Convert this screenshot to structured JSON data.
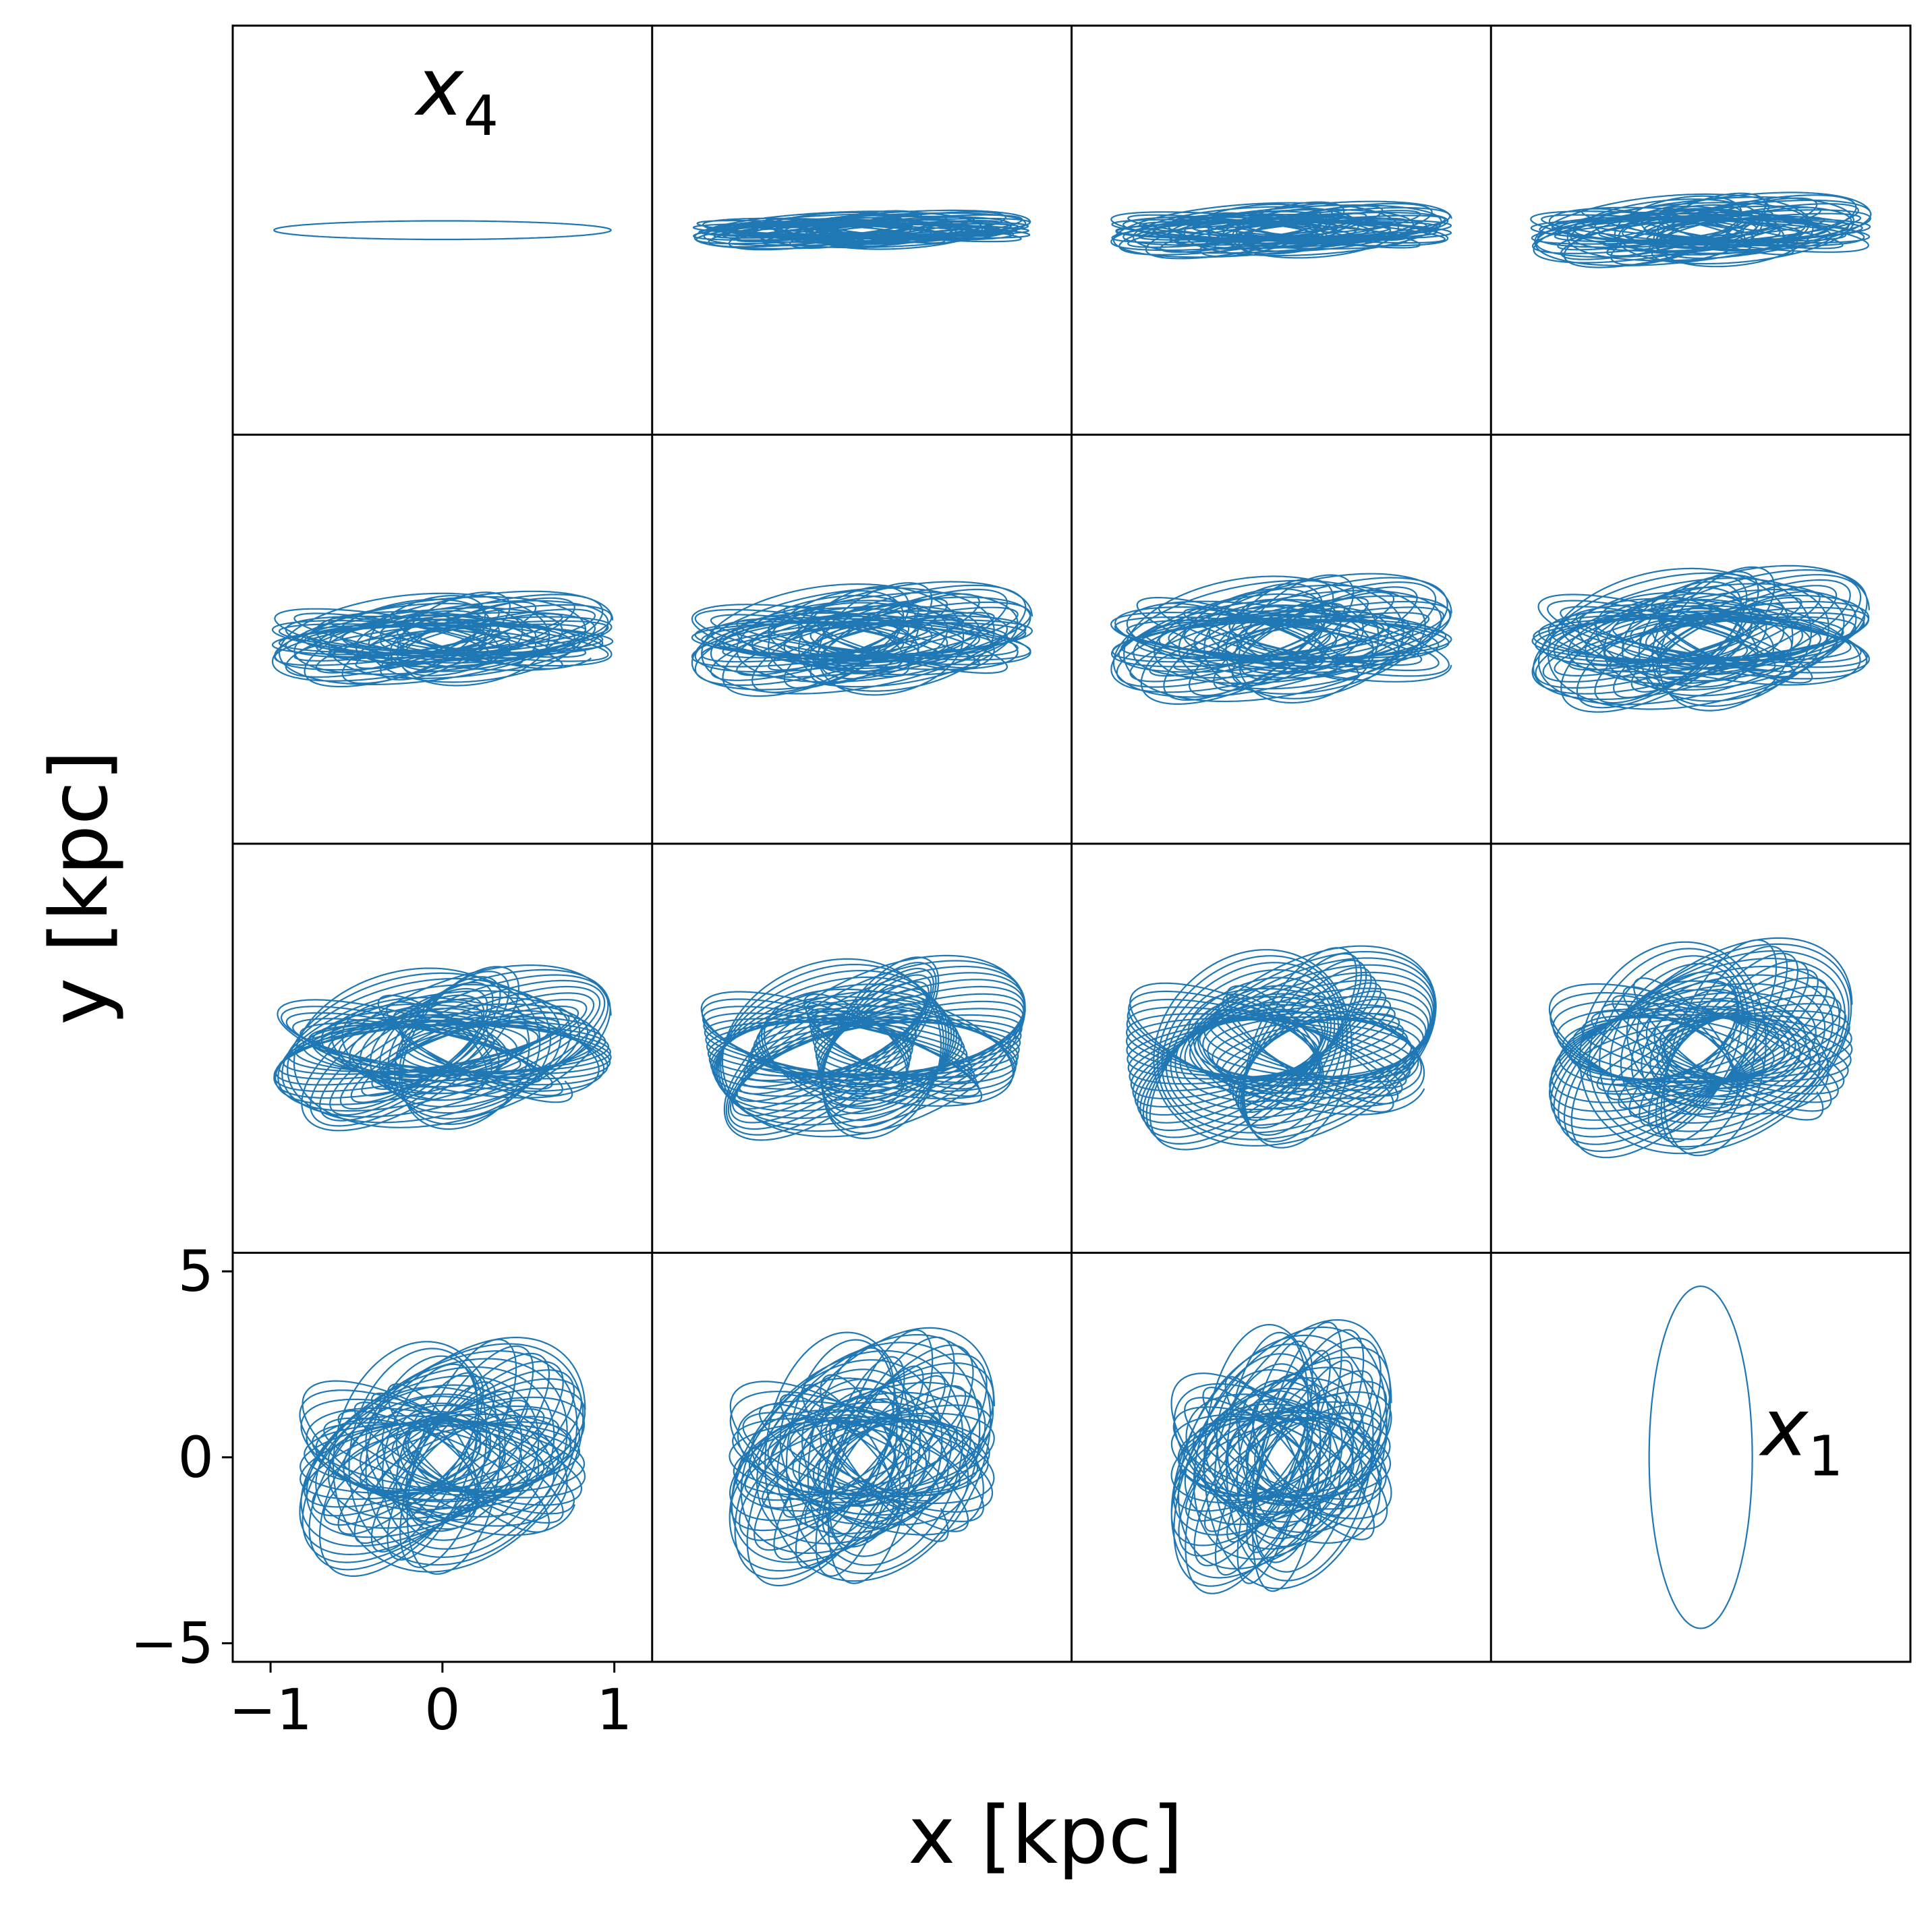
{
  "chart_data": {
    "type": "line",
    "title": "",
    "xlabel": "x [kpc]",
    "ylabel": "y [kpc]",
    "xlim": [
      -1.22,
      1.22
    ],
    "ylim": [
      -5.5,
      5.5
    ],
    "xticks": [
      -1,
      0,
      1
    ],
    "xtick_labels": [
      "−1",
      "0",
      "1"
    ],
    "yticks": [
      -5,
      0,
      5
    ],
    "ytick_labels": [
      "−5",
      "0",
      "5"
    ],
    "grid": false,
    "rows": 4,
    "cols": 4,
    "shared_axes": true,
    "line_color": "#1f77b4",
    "annotations": [
      {
        "panel": 0,
        "text": "x",
        "subscript": "4"
      },
      {
        "panel": 15,
        "text": "x",
        "subscript": "1"
      }
    ],
    "panels": [
      {
        "x_extent": 0.98,
        "y_extent": 0.25,
        "loops": 1
      },
      {
        "x_extent": 0.98,
        "y_extent": 0.62,
        "loops": 38
      },
      {
        "x_extent": 0.99,
        "y_extent": 0.9,
        "loops": 40
      },
      {
        "x_extent": 0.99,
        "y_extent": 1.18,
        "loops": 42
      },
      {
        "x_extent": 0.99,
        "y_extent": 1.5,
        "loops": 44
      },
      {
        "x_extent": 0.99,
        "y_extent": 1.8,
        "loops": 46
      },
      {
        "x_extent": 0.99,
        "y_extent": 2.05,
        "loops": 48
      },
      {
        "x_extent": 0.98,
        "y_extent": 2.3,
        "loops": 50
      },
      {
        "x_extent": 0.98,
        "y_extent": 2.6,
        "loops": 52
      },
      {
        "x_extent": 0.95,
        "y_extent": 2.9,
        "loops": 52
      },
      {
        "x_extent": 0.9,
        "y_extent": 3.2,
        "loops": 52
      },
      {
        "x_extent": 0.88,
        "y_extent": 3.45,
        "loops": 52
      },
      {
        "x_extent": 0.83,
        "y_extent": 3.75,
        "loops": 54
      },
      {
        "x_extent": 0.77,
        "y_extent": 4.05,
        "loops": 54
      },
      {
        "x_extent": 0.64,
        "y_extent": 4.3,
        "loops": 54
      },
      {
        "x_extent": 0.3,
        "y_extent": 4.6,
        "loops": 1
      }
    ]
  }
}
